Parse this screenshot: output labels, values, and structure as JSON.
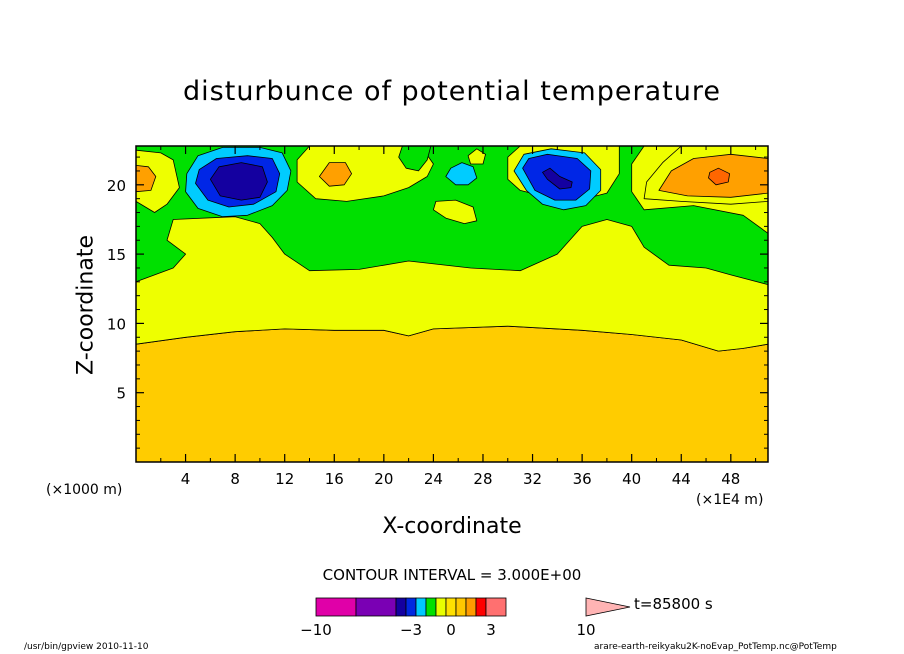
{
  "chart_data": {
    "type": "heatmap",
    "title": "disturbunce of potential temperature",
    "xlabel": "X-coordinate",
    "ylabel": "Z-coordinate",
    "x_unit_left": "(×1000 m)",
    "x_unit_right": "(×1E4 m)",
    "xlim": [
      0,
      51
    ],
    "ylim": [
      0,
      22.8
    ],
    "x_ticks": [
      4,
      8,
      12,
      16,
      20,
      24,
      28,
      32,
      36,
      40,
      44,
      48
    ],
    "x_tick_labels": [
      "4",
      "8",
      "12",
      "16",
      "20",
      "24",
      "28",
      "32",
      "36",
      "40",
      "44",
      "48"
    ],
    "y_ticks": [
      5,
      10,
      15,
      20
    ],
    "y_tick_labels": [
      "5",
      "10",
      "15",
      "20"
    ],
    "contour_interval": "CONTOUR INTERVAL = 3.000E+00",
    "time": "t=85800 s",
    "colorbar": {
      "bounds": [
        -10,
        -3,
        0,
        3,
        10
      ],
      "tick_labels": [
        "−10",
        "−3",
        "0",
        "3",
        "10"
      ],
      "colors": [
        "#e000a8",
        "#7a00b4",
        "#1400a0",
        "#0028e0",
        "#00c8ff",
        "#00e000",
        "#e8ff00",
        "#ffe000",
        "#ffc800",
        "#ff9c00",
        "#ff0000",
        "#ff7070",
        "#ffb4b4"
      ]
    },
    "regions": [
      {
        "level": 0,
        "color": "#ffcc00",
        "polygon": [
          [
            0,
            0
          ],
          [
            51,
            0
          ],
          [
            51,
            8.5
          ],
          [
            49,
            8.2
          ],
          [
            47,
            8.0
          ],
          [
            44,
            8.8
          ],
          [
            40,
            9.2
          ],
          [
            36,
            9.5
          ],
          [
            30,
            9.8
          ],
          [
            24,
            9.6
          ],
          [
            22,
            9.1
          ],
          [
            20,
            9.5
          ],
          [
            16,
            9.5
          ],
          [
            12,
            9.6
          ],
          [
            8,
            9.4
          ],
          [
            4,
            9.0
          ],
          [
            0,
            8.5
          ]
        ]
      },
      {
        "level": 1,
        "color": "#eeff00",
        "polygon": [
          [
            0,
            8.5
          ],
          [
            4,
            9.0
          ],
          [
            8,
            9.4
          ],
          [
            12,
            9.6
          ],
          [
            16,
            9.5
          ],
          [
            20,
            9.5
          ],
          [
            22,
            9.1
          ],
          [
            24,
            9.6
          ],
          [
            30,
            9.8
          ],
          [
            36,
            9.5
          ],
          [
            40,
            9.2
          ],
          [
            44,
            8.8
          ],
          [
            47,
            8.0
          ],
          [
            49,
            8.2
          ],
          [
            51,
            8.5
          ],
          [
            51,
            22.8
          ],
          [
            0,
            22.8
          ]
        ]
      },
      {
        "level": 2,
        "color": "#00e000",
        "polygon": [
          [
            0,
            13.0
          ],
          [
            3,
            14.0
          ],
          [
            4,
            15.0
          ],
          [
            2.5,
            16.0
          ],
          [
            3,
            17.5
          ],
          [
            8,
            17.7
          ],
          [
            10,
            17.2
          ],
          [
            11,
            16.2
          ],
          [
            12,
            15.0
          ],
          [
            14,
            13.8
          ],
          [
            18,
            13.9
          ],
          [
            22,
            14.5
          ],
          [
            27,
            14.0
          ],
          [
            31,
            13.8
          ],
          [
            34,
            15.0
          ],
          [
            36,
            17.0
          ],
          [
            38,
            17.5
          ],
          [
            40,
            17.0
          ],
          [
            41,
            15.5
          ],
          [
            43,
            14.2
          ],
          [
            46,
            14.0
          ],
          [
            48,
            13.5
          ],
          [
            51,
            12.8
          ],
          [
            51,
            16.5
          ],
          [
            49,
            17.8
          ],
          [
            45,
            18.5
          ],
          [
            41,
            18.2
          ],
          [
            40,
            19.5
          ],
          [
            40,
            21.5
          ],
          [
            41,
            22.8
          ],
          [
            0,
            22.8
          ],
          [
            0,
            20.5
          ],
          [
            0.5,
            19.5
          ],
          [
            0,
            18.7
          ]
        ]
      },
      {
        "level": 3,
        "color": "#eeff00",
        "polygon": [
          [
            0,
            18.8
          ],
          [
            1.5,
            18.0
          ],
          [
            2.5,
            18.6
          ],
          [
            3.5,
            19.8
          ],
          [
            3.0,
            21.8
          ],
          [
            2,
            22.3
          ],
          [
            0,
            22.5
          ]
        ]
      },
      {
        "level": 3,
        "color": "#eeff00",
        "polygon": [
          [
            13,
            20.2
          ],
          [
            14.5,
            19.0
          ],
          [
            17,
            18.8
          ],
          [
            20,
            19.2
          ],
          [
            22,
            19.8
          ],
          [
            23.5,
            20.6
          ],
          [
            24,
            21.5
          ],
          [
            23,
            22.8
          ],
          [
            19,
            22.8
          ],
          [
            14,
            22.8
          ],
          [
            13,
            21.8
          ]
        ]
      },
      {
        "level": 3,
        "color": "#eeff00",
        "polygon": [
          [
            24,
            18.2
          ],
          [
            25,
            17.6
          ],
          [
            26.5,
            17.2
          ],
          [
            27.5,
            17.4
          ],
          [
            27.2,
            18.4
          ],
          [
            25.8,
            18.9
          ],
          [
            24.2,
            18.8
          ]
        ]
      },
      {
        "level": 3,
        "color": "#eeff00",
        "polygon": [
          [
            27,
            21.5
          ],
          [
            28,
            21.5
          ],
          [
            28.2,
            22.2
          ],
          [
            27.5,
            22.6
          ],
          [
            26.8,
            22.1
          ]
        ]
      },
      {
        "level": 3,
        "color": "#eeff00",
        "polygon": [
          [
            30,
            20.4
          ],
          [
            31,
            19.6
          ],
          [
            35,
            18.7
          ],
          [
            38,
            19.4
          ],
          [
            39,
            20.8
          ],
          [
            39,
            22.8
          ],
          [
            31,
            22.8
          ],
          [
            30,
            22.0
          ]
        ]
      },
      {
        "level": 3,
        "color": "#eeff00",
        "polygon": [
          [
            41,
            19.0
          ],
          [
            44,
            18.8
          ],
          [
            48,
            18.6
          ],
          [
            51,
            18.8
          ],
          [
            51,
            22.8
          ],
          [
            44,
            22.8
          ],
          [
            42.5,
            21.6
          ],
          [
            41.2,
            20.2
          ]
        ]
      },
      {
        "level": 4,
        "color": "#ffa000",
        "polygon": [
          [
            0,
            19.5
          ],
          [
            1.2,
            19.6
          ],
          [
            1.6,
            20.6
          ],
          [
            1.0,
            21.3
          ],
          [
            0,
            21.4
          ]
        ]
      },
      {
        "level": 4,
        "color": "#ffa000",
        "polygon": [
          [
            14.8,
            20.6
          ],
          [
            15.6,
            19.9
          ],
          [
            16.8,
            20.0
          ],
          [
            17.4,
            20.8
          ],
          [
            16.9,
            21.6
          ],
          [
            15.6,
            21.6
          ]
        ]
      },
      {
        "level": 4,
        "color": "#ffa000",
        "polygon": [
          [
            42.2,
            19.6
          ],
          [
            44.5,
            19.2
          ],
          [
            48,
            19.1
          ],
          [
            51,
            19.4
          ],
          [
            51,
            21.9
          ],
          [
            48,
            22.2
          ],
          [
            45,
            21.9
          ],
          [
            43.2,
            21.0
          ]
        ]
      },
      {
        "level": 5,
        "color": "#ff6600",
        "polygon": [
          [
            46.2,
            20.5
          ],
          [
            46.8,
            20.0
          ],
          [
            47.8,
            20.2
          ],
          [
            47.9,
            20.8
          ],
          [
            47,
            21.2
          ],
          [
            46.3,
            20.9
          ]
        ]
      },
      {
        "level": 2,
        "color": "#00e000",
        "polygon": [
          [
            21.5,
            22.8
          ],
          [
            21.2,
            22.0
          ],
          [
            21.8,
            21.2
          ],
          [
            22.8,
            21.0
          ],
          [
            23.5,
            21.8
          ],
          [
            23.8,
            22.8
          ]
        ]
      },
      {
        "level": -1,
        "color": "#00ccff",
        "polygon": [
          [
            25,
            20.6
          ],
          [
            25.8,
            20.0
          ],
          [
            26.8,
            20.0
          ],
          [
            27.5,
            20.5
          ],
          [
            27.2,
            21.3
          ],
          [
            26.3,
            21.6
          ],
          [
            25.4,
            21.2
          ]
        ]
      },
      {
        "level": -1,
        "color": "#00ccff",
        "polygon": [
          [
            4,
            19.5
          ],
          [
            5,
            18.3
          ],
          [
            7,
            17.7
          ],
          [
            9,
            17.8
          ],
          [
            11,
            18.5
          ],
          [
            12.2,
            19.6
          ],
          [
            12.5,
            21.0
          ],
          [
            11.8,
            22.3
          ],
          [
            10,
            22.7
          ],
          [
            7,
            22.7
          ],
          [
            5,
            22.1
          ],
          [
            4.1,
            20.8
          ]
        ]
      },
      {
        "level": -1,
        "color": "#00ccff",
        "polygon": [
          [
            30.5,
            21.0
          ],
          [
            31.5,
            19.6
          ],
          [
            32.8,
            18.6
          ],
          [
            34.5,
            18.2
          ],
          [
            36.3,
            18.5
          ],
          [
            37.5,
            19.6
          ],
          [
            37.5,
            21.1
          ],
          [
            36.2,
            22.3
          ],
          [
            33.5,
            22.6
          ],
          [
            31.3,
            22.2
          ]
        ]
      },
      {
        "level": -2,
        "color": "#0026e6",
        "polygon": [
          [
            4.8,
            20.1
          ],
          [
            5.8,
            18.9
          ],
          [
            7.5,
            18.4
          ],
          [
            9.5,
            18.6
          ],
          [
            11.3,
            19.5
          ],
          [
            11.6,
            20.8
          ],
          [
            11,
            21.9
          ],
          [
            9,
            22.1
          ],
          [
            6.5,
            21.9
          ],
          [
            5.1,
            21.1
          ]
        ]
      },
      {
        "level": -2,
        "color": "#0026e6",
        "polygon": [
          [
            31.2,
            21.2
          ],
          [
            32.2,
            19.6
          ],
          [
            33.8,
            18.9
          ],
          [
            35.5,
            18.9
          ],
          [
            36.6,
            19.7
          ],
          [
            36.7,
            21.0
          ],
          [
            35.6,
            21.9
          ],
          [
            33.2,
            22.2
          ],
          [
            31.7,
            21.9
          ]
        ]
      },
      {
        "level": -3,
        "color": "#1400a0",
        "polygon": [
          [
            6,
            20.4
          ],
          [
            6.8,
            19.2
          ],
          [
            8.5,
            18.9
          ],
          [
            10,
            19.1
          ],
          [
            10.6,
            20.2
          ],
          [
            10.2,
            21.3
          ],
          [
            8.5,
            21.6
          ],
          [
            6.7,
            21.3
          ]
        ]
      },
      {
        "level": -3,
        "color": "#1400a0",
        "polygon": [
          [
            32.8,
            20.9
          ],
          [
            33.2,
            20.4
          ],
          [
            34.2,
            19.7
          ],
          [
            35.1,
            19.8
          ],
          [
            35.2,
            20.2
          ],
          [
            34.2,
            20.6
          ],
          [
            33.4,
            21.2
          ]
        ]
      }
    ]
  },
  "footer": {
    "left": "/usr/bin/gpview   2010-11-10",
    "right": "arare-earth-reikyaku2K-noEvap_PotTemp.nc@PotTemp"
  }
}
